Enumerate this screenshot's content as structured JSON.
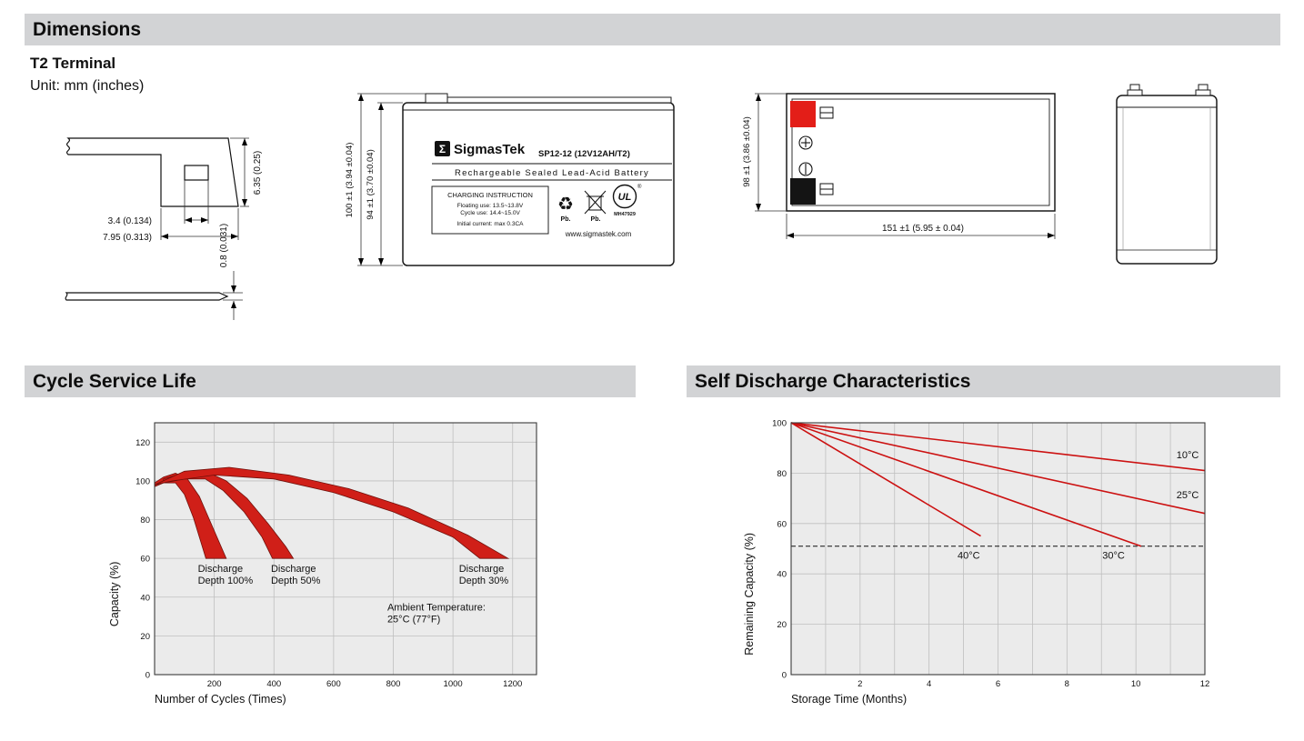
{
  "sections": {
    "dimensions": "Dimensions",
    "cycle_life": "Cycle Service Life",
    "self_discharge": "Self Discharge Characteristics"
  },
  "terminal": {
    "title": "T2 Terminal",
    "unit": "Unit: mm (inches)",
    "dim_height": "6.35 (0.25)",
    "dim_hole_width": "3.4 (0.134)",
    "dim_tab_width": "7.95 (0.313)",
    "dim_thickness": "0.8 (0.031)"
  },
  "front_view": {
    "dim_total_height": "100 ±1 (3.94 ±0.04)",
    "dim_case_height": "94 ±1 (3.70 ±0.04)",
    "brand_mark": "Σ",
    "brand": "SigmasTek",
    "model": "SP12-12 (12V12AH/T2)",
    "type_line": "Rechargeable Sealed Lead-Acid Battery",
    "charging_title": "CHARGING INSTRUCTION",
    "charging_floating": "Floating use: 13.5~13.8V",
    "charging_cycle": "Cycle use: 14.4~15.0V",
    "charging_initial": "Initial current: max 0.3CA",
    "website": "www.sigmastek.com",
    "pb_recycle_label": "Pb.",
    "pb_bin_label": "Pb.",
    "ul_label": "UL",
    "ul_reg": "®",
    "ul_code": "MH47929",
    "recycle_glyph": "♻"
  },
  "top_view": {
    "dim_height": "98 ±1 (3.86 ±0.04)",
    "dim_length": "151 ±1 (5.95 ± 0.04)"
  },
  "chart_data": [
    {
      "type": "area",
      "title": "Cycle Service Life",
      "xlabel": "Number of Cycles (Times)",
      "ylabel": "Capacity (%)",
      "xlim": [
        0,
        1280
      ],
      "ylim": [
        0,
        130
      ],
      "xticks": [
        200,
        400,
        600,
        800,
        1000,
        1200
      ],
      "yticks": [
        0,
        20,
        40,
        60,
        80,
        100,
        120
      ],
      "grid": true,
      "legend_position": "none",
      "band_color": "#d01f18",
      "bands": [
        {
          "name": "Discharge Depth 100%",
          "upper": [
            [
              0,
              99
            ],
            [
              30,
              102
            ],
            [
              70,
              104
            ],
            [
              110,
              101
            ],
            [
              150,
              92
            ],
            [
              195,
              76
            ],
            [
              240,
              60
            ]
          ],
          "lower": [
            [
              0,
              97
            ],
            [
              30,
              99
            ],
            [
              70,
              99
            ],
            [
              100,
              93
            ],
            [
              130,
              81
            ],
            [
              160,
              66
            ],
            [
              172,
              60
            ]
          ]
        },
        {
          "name": "Discharge Depth 50%",
          "upper": [
            [
              30,
              101
            ],
            [
              100,
              104
            ],
            [
              170,
              105
            ],
            [
              240,
              100
            ],
            [
              310,
              91
            ],
            [
              380,
              78
            ],
            [
              440,
              66
            ],
            [
              465,
              60
            ]
          ],
          "lower": [
            [
              30,
              99
            ],
            [
              100,
              101
            ],
            [
              170,
              101
            ],
            [
              230,
              95
            ],
            [
              300,
              84
            ],
            [
              360,
              71
            ],
            [
              395,
              60
            ]
          ]
        },
        {
          "name": "Discharge Depth 30%",
          "upper": [
            [
              0,
              98
            ],
            [
              100,
              105
            ],
            [
              250,
              107
            ],
            [
              450,
              103
            ],
            [
              650,
              96
            ],
            [
              850,
              86
            ],
            [
              1050,
              72
            ],
            [
              1185,
              60
            ]
          ],
          "lower": [
            [
              60,
              100
            ],
            [
              200,
              103
            ],
            [
              400,
              101
            ],
            [
              600,
              94
            ],
            [
              800,
              84
            ],
            [
              1000,
              71
            ],
            [
              1090,
              60
            ]
          ]
        }
      ],
      "annotations": [
        {
          "lines": [
            "Discharge",
            "Depth 100%"
          ],
          "x": 145,
          "y": 53
        },
        {
          "lines": [
            "Discharge",
            "Depth 50%"
          ],
          "x": 390,
          "y": 53
        },
        {
          "lines": [
            "Discharge",
            "Depth 30%"
          ],
          "x": 1020,
          "y": 53
        },
        {
          "lines": [
            "Ambient Temperature:",
            "25°C (77°F)"
          ],
          "x": 780,
          "y": 33
        }
      ]
    },
    {
      "type": "line",
      "title": "Self Discharge Characteristics",
      "xlabel": "Storage Time (Months)",
      "ylabel": "Remaining Capacity (%)",
      "xlim": [
        0,
        12
      ],
      "ylim": [
        0,
        100
      ],
      "xticks": [
        2,
        4,
        6,
        8,
        10,
        12
      ],
      "yticks": [
        0,
        20,
        40,
        60,
        80,
        100
      ],
      "grid": true,
      "legend_position": "inline-labels",
      "line_color": "#cc1111",
      "series": [
        {
          "name": "40°C",
          "points": [
            [
              0,
              100
            ],
            [
              5.5,
              55
            ]
          ],
          "label": {
            "x": 5.15,
            "y": 46
          }
        },
        {
          "name": "30°C",
          "points": [
            [
              0,
              100
            ],
            [
              10.15,
              51
            ]
          ],
          "label": {
            "x": 9.35,
            "y": 46
          }
        },
        {
          "name": "25°C",
          "points": [
            [
              0,
              100
            ],
            [
              12,
              64
            ]
          ],
          "label": {
            "x": 11.5,
            "y": 70
          }
        },
        {
          "name": "10°C",
          "points": [
            [
              0,
              100
            ],
            [
              12,
              81
            ]
          ],
          "label": {
            "x": 11.5,
            "y": 86
          }
        }
      ],
      "dashed_line_y": 51
    }
  ]
}
